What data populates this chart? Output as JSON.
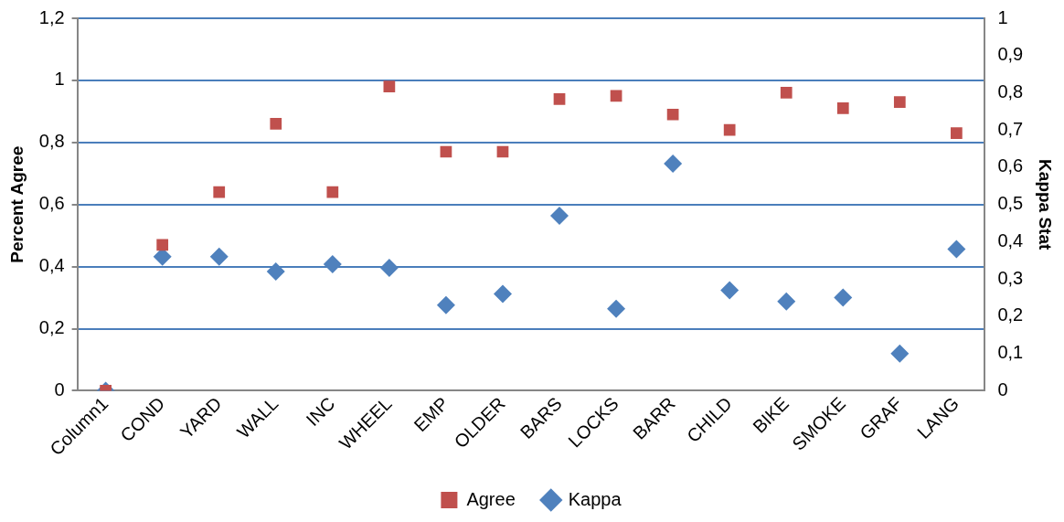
{
  "chart_data": {
    "type": "scatter",
    "ylabel": "Percent Agree",
    "y2label": "Kappa Stat",
    "categories": [
      "Column1",
      "COND",
      "YARD",
      "WALL",
      "INC",
      "WHEEL",
      "EMP",
      "OLDER",
      "BARS",
      "LOCKS",
      "BARR",
      "CHILD",
      "BIKE",
      "SMOKE",
      "GRAF",
      "LANG"
    ],
    "series": [
      {
        "name": "Agree",
        "color": "#c0504d",
        "marker": "square",
        "values": [
          0,
          0.47,
          0.64,
          0.86,
          0.64,
          0.98,
          0.77,
          0.77,
          0.94,
          0.95,
          0.89,
          0.84,
          0.96,
          0.91,
          0.93,
          0.83
        ]
      },
      {
        "name": "Kappa",
        "color": "#4f81bd",
        "marker": "diamond",
        "axis": "y2",
        "values": [
          0,
          0.36,
          0.36,
          0.32,
          0.34,
          0.33,
          0.23,
          0.26,
          0.47,
          0.22,
          0.61,
          0.27,
          0.24,
          0.25,
          0.1,
          0.38
        ]
      }
    ],
    "ylim": [
      0,
      1.2
    ],
    "yticks": [
      0,
      {
        "value": 0.2,
        "label": "0,2"
      },
      {
        "value": 0.4,
        "label": "0,4"
      },
      {
        "value": 0.6,
        "label": "0,6"
      },
      {
        "value": 0.8,
        "label": "0,8"
      },
      1,
      {
        "value": 1.2,
        "label": "1,2"
      }
    ],
    "y2lim": [
      0,
      1
    ],
    "y2ticks": [
      0,
      {
        "value": 0.1,
        "label": "0,1"
      },
      {
        "value": 0.2,
        "label": "0,2"
      },
      {
        "value": 0.3,
        "label": "0,3"
      },
      {
        "value": 0.4,
        "label": "0,4"
      },
      {
        "value": 0.5,
        "label": "0,5"
      },
      {
        "value": 0.6,
        "label": "0,6"
      },
      {
        "value": 0.7,
        "label": "0,7"
      },
      {
        "value": 0.8,
        "label": "0,8"
      },
      {
        "value": 0.9,
        "label": "0,9"
      },
      1
    ],
    "grid": "y",
    "legend": "bottom"
  }
}
